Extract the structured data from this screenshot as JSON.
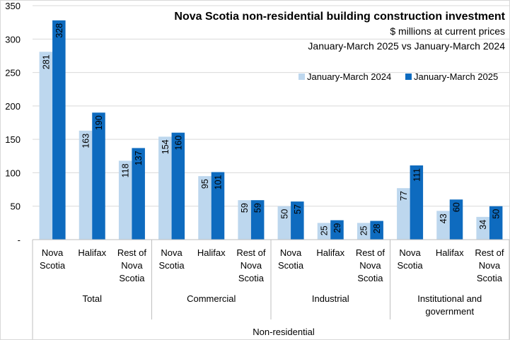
{
  "chart_data": {
    "type": "bar",
    "title": "Nova Scotia non-residential building construction investment",
    "subtitle_1": "$ millions at current prices",
    "subtitle_2": "January-March 2025 vs January-March 2024",
    "ylim": [
      0,
      350
    ],
    "yticks": [
      "-",
      "50",
      "100",
      "150",
      "200",
      "250",
      "300",
      "350"
    ],
    "ytick_values": [
      0,
      50,
      100,
      150,
      200,
      250,
      300,
      350
    ],
    "categories": [
      {
        "lines": [
          "Nova",
          "Scotia"
        ]
      },
      {
        "lines": [
          "Halifax"
        ]
      },
      {
        "lines": [
          "Rest of",
          "Nova",
          "Scotia"
        ]
      },
      {
        "lines": [
          "Nova",
          "Scotia"
        ]
      },
      {
        "lines": [
          "Halifax"
        ]
      },
      {
        "lines": [
          "Rest of",
          "Nova",
          "Scotia"
        ]
      },
      {
        "lines": [
          "Nova",
          "Scotia"
        ]
      },
      {
        "lines": [
          "Halifax"
        ]
      },
      {
        "lines": [
          "Rest of",
          "Nova",
          "Scotia"
        ]
      },
      {
        "lines": [
          "Nova",
          "Scotia"
        ]
      },
      {
        "lines": [
          "Halifax"
        ]
      },
      {
        "lines": [
          "Rest of",
          "Nova",
          "Scotia"
        ]
      }
    ],
    "groups": [
      {
        "lines": [
          "Total"
        ],
        "span": 3
      },
      {
        "lines": [
          "Commercial"
        ],
        "span": 3
      },
      {
        "lines": [
          "Industrial"
        ],
        "span": 3
      },
      {
        "lines": [
          "Institutional and",
          "government"
        ],
        "span": 3
      }
    ],
    "supergroup": "Non-residential",
    "series": [
      {
        "name": "January-March 2024",
        "color": "#bdd7ee",
        "values": [
          281,
          163,
          118,
          154,
          95,
          59,
          50,
          25,
          25,
          77,
          43,
          34
        ]
      },
      {
        "name": "January-March 2025",
        "color": "#0e6bbf",
        "values": [
          328,
          190,
          137,
          160,
          101,
          59,
          57,
          29,
          28,
          111,
          60,
          50
        ]
      }
    ],
    "legend_position": "top-right",
    "grid": true
  }
}
